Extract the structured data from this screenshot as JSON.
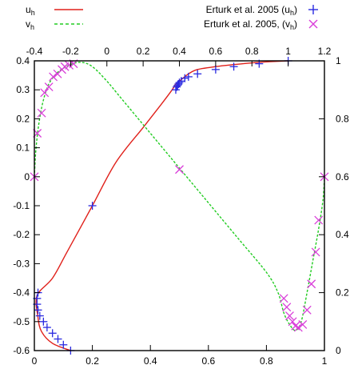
{
  "chart_data": {
    "type": "line",
    "title": "",
    "axes": {
      "bottom": {
        "range": [
          0,
          1
        ],
        "ticks": [
          "0",
          "0.2",
          "0.4",
          "0.6",
          "0.8",
          "1"
        ]
      },
      "top": {
        "range": [
          -0.4,
          1.2
        ],
        "ticks": [
          "-0.4",
          "-0.2",
          "0",
          "0.2",
          "0.4",
          "0.6",
          "0.8",
          "1",
          "1.2"
        ]
      },
      "left": {
        "range": [
          -0.6,
          0.4
        ],
        "ticks": [
          "0.4",
          "0.3",
          "0.2",
          "0.1",
          "0",
          "-0.1",
          "-0.2",
          "-0.3",
          "-0.4",
          "-0.5",
          "-0.6"
        ]
      },
      "right": {
        "range": [
          0,
          1
        ],
        "ticks": [
          "1",
          "0.8",
          "0.6",
          "0.4",
          "0.2",
          "0"
        ]
      }
    },
    "legend": {
      "placement": "top",
      "entries": [
        {
          "label_main": "u",
          "label_sub": "h",
          "style": "solid-line",
          "color": "#e0201a"
        },
        {
          "label_main": "v",
          "label_sub": "h",
          "style": "dashed-line",
          "color": "#22cc22"
        },
        {
          "label_main": "Erturk et al. 2005 (u",
          "label_sub": "h",
          "label_tail": ")",
          "style": "plus-marker",
          "color": "#2a2ae0"
        },
        {
          "label_main": "Erturk et al. 2005, (v",
          "label_sub": "h",
          "label_tail": ")",
          "style": "x-marker",
          "color": "#d93fd9"
        }
      ]
    },
    "series": [
      {
        "name": "uh",
        "style": "solid",
        "color": "#e0201a",
        "x_axis": "top",
        "y_axis": "left",
        "x": [
          -0.2,
          -0.3,
          -0.36,
          -0.38,
          -0.385,
          -0.3,
          -0.22,
          -0.08,
          0.05,
          0.2,
          0.3,
          0.36,
          0.38,
          0.41,
          0.45,
          0.5,
          0.6,
          0.7,
          0.8,
          0.9,
          1.0
        ],
        "y": [
          -0.6,
          -0.575,
          -0.535,
          -0.485,
          -0.41,
          -0.35,
          -0.26,
          -0.1,
          0.05,
          0.17,
          0.25,
          0.3,
          0.32,
          0.335,
          0.355,
          0.37,
          0.38,
          0.387,
          0.393,
          0.397,
          0.4
        ]
      },
      {
        "name": "vh",
        "style": "dashed",
        "color": "#22cc22",
        "x_axis": "bottom",
        "y_axis": "right",
        "x": [
          0.0,
          0.005,
          0.015,
          0.03,
          0.05,
          0.08,
          0.12,
          0.16,
          0.2,
          0.25,
          0.3,
          0.4,
          0.5,
          0.6,
          0.7,
          0.8,
          0.84,
          0.86,
          0.88,
          0.9,
          0.92,
          0.94,
          0.96,
          0.98,
          0.995,
          1.0
        ],
        "y": [
          0.6,
          0.69,
          0.78,
          0.86,
          0.92,
          0.96,
          0.985,
          0.995,
          0.98,
          0.93,
          0.87,
          0.75,
          0.63,
          0.51,
          0.39,
          0.27,
          0.2,
          0.13,
          0.09,
          0.07,
          0.1,
          0.2,
          0.31,
          0.42,
          0.52,
          0.6
        ]
      },
      {
        "name": "Erturk et al. 2005 (uh)",
        "style": "plus-marker",
        "color": "#2a2ae0",
        "x_axis": "top",
        "y_axis": "left",
        "x": [
          -0.38,
          -0.385,
          -0.385,
          -0.38,
          -0.37,
          -0.35,
          -0.33,
          -0.3,
          -0.27,
          -0.24,
          -0.2,
          -0.08,
          0.38,
          0.385,
          0.39,
          0.395,
          0.4,
          0.41,
          0.43,
          0.45,
          0.5,
          0.6,
          0.7,
          0.84,
          1.0
        ],
        "y": [
          -0.4,
          -0.42,
          -0.44,
          -0.46,
          -0.48,
          -0.5,
          -0.52,
          -0.54,
          -0.56,
          -0.58,
          -0.6,
          -0.1,
          0.3,
          0.31,
          0.315,
          0.32,
          0.325,
          0.33,
          0.34,
          0.345,
          0.355,
          0.37,
          0.38,
          0.39,
          0.4
        ]
      },
      {
        "name": "Erturk et al. 2005, (vh)",
        "style": "x-marker",
        "color": "#d93fd9",
        "x_axis": "bottom",
        "y_axis": "right",
        "x": [
          0.0,
          0.01,
          0.025,
          0.035,
          0.05,
          0.065,
          0.08,
          0.095,
          0.105,
          0.12,
          0.135,
          0.5,
          0.86,
          0.87,
          0.88,
          0.89,
          0.9,
          0.91,
          0.925,
          0.94,
          0.955,
          0.97,
          0.98,
          1.0
        ],
        "y": [
          0.6,
          0.75,
          0.82,
          0.89,
          0.91,
          0.945,
          0.955,
          0.97,
          0.98,
          0.985,
          0.99,
          0.625,
          0.18,
          0.15,
          0.12,
          0.1,
          0.085,
          0.08,
          0.09,
          0.14,
          0.23,
          0.34,
          0.45,
          0.6
        ]
      }
    ]
  }
}
